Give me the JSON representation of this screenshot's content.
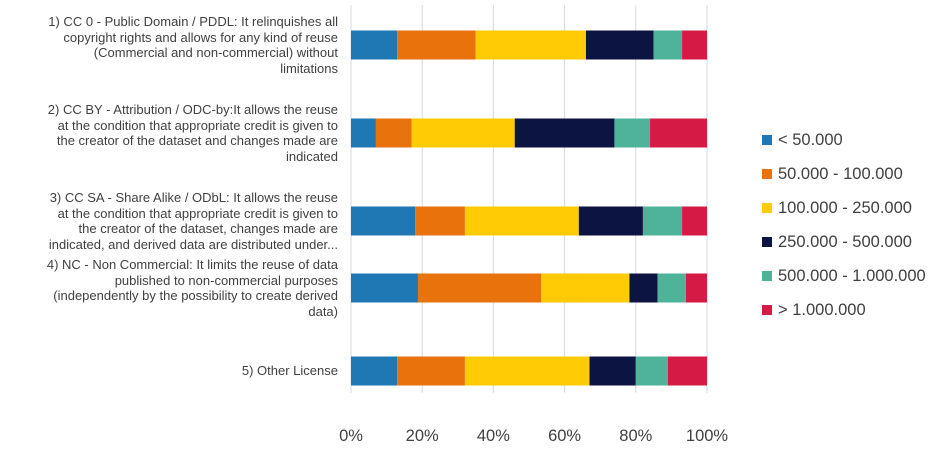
{
  "chart_data": {
    "type": "bar",
    "orientation": "horizontal",
    "stacked": true,
    "percent": true,
    "categories": [
      "1) CC 0 - Public Domain / PDDL: It relinquishes all copyright rights and allows for any kind of reuse (Commercial and non-commercial) without limitations",
      "2) CC BY - Attribution / ODC-by:It allows the reuse at the condition that appropriate credit is given to the creator of the dataset and changes made are indicated",
      "3) CC SA - Share Alike / ODbL: It allows the reuse at the condition that appropriate credit is given to the creator of the dataset, changes made are indicated, and derived data are distributed under...",
      "4) NC - Non Commercial: It limits the reuse of data published to non-commercial purposes (independently by the possibility to create derived data)",
      "5) Other License"
    ],
    "category_lines": [
      [
        "1) CC 0 - Public Domain / PDDL: It relinquishes all",
        "copyright rights and allows for any kind of reuse",
        "(Commercial and non-commercial) without",
        "limitations"
      ],
      [
        "2) CC BY - Attribution / ODC-by:It allows the reuse",
        "at the condition that appropriate credit is given to",
        "the creator of the dataset and changes made are",
        "indicated"
      ],
      [
        "3) CC SA - Share Alike / ODbL: It allows the reuse",
        "at the condition that appropriate credit is given to",
        "the creator of the dataset, changes made are",
        "indicated, and derived data are distributed under..."
      ],
      [
        "4) NC - Non Commercial: It limits the reuse of data",
        "published to non-commercial purposes",
        "(independently by the possibility to create derived",
        "data)"
      ],
      [
        "5) Other License"
      ]
    ],
    "series": [
      {
        "name": "< 50.000",
        "color": "#1F77B4",
        "values": [
          13,
          7,
          18,
          19,
          13
        ]
      },
      {
        "name": "50.000 - 100.000",
        "color": "#E8720C",
        "values": [
          22,
          10,
          14,
          35,
          19
        ]
      },
      {
        "name": "100.000 - 250.000",
        "color": "#FFCB05",
        "values": [
          31,
          29,
          32,
          25,
          35
        ]
      },
      {
        "name": "250.000 - 500.000",
        "color": "#0C1541",
        "values": [
          19,
          28,
          18,
          8,
          13
        ]
      },
      {
        "name": "500.000 - 1.000.000",
        "color": "#4FB39A",
        "values": [
          8,
          10,
          11,
          8,
          9
        ]
      },
      {
        "name": "> 1.000.000",
        "color": "#D61A46",
        "values": [
          7,
          16,
          7,
          6,
          11
        ]
      }
    ],
    "xlim": [
      0,
      100
    ],
    "xticks": [
      "0%",
      "20%",
      "40%",
      "60%",
      "80%",
      "100%"
    ],
    "grid": true,
    "legend_position": "right"
  }
}
